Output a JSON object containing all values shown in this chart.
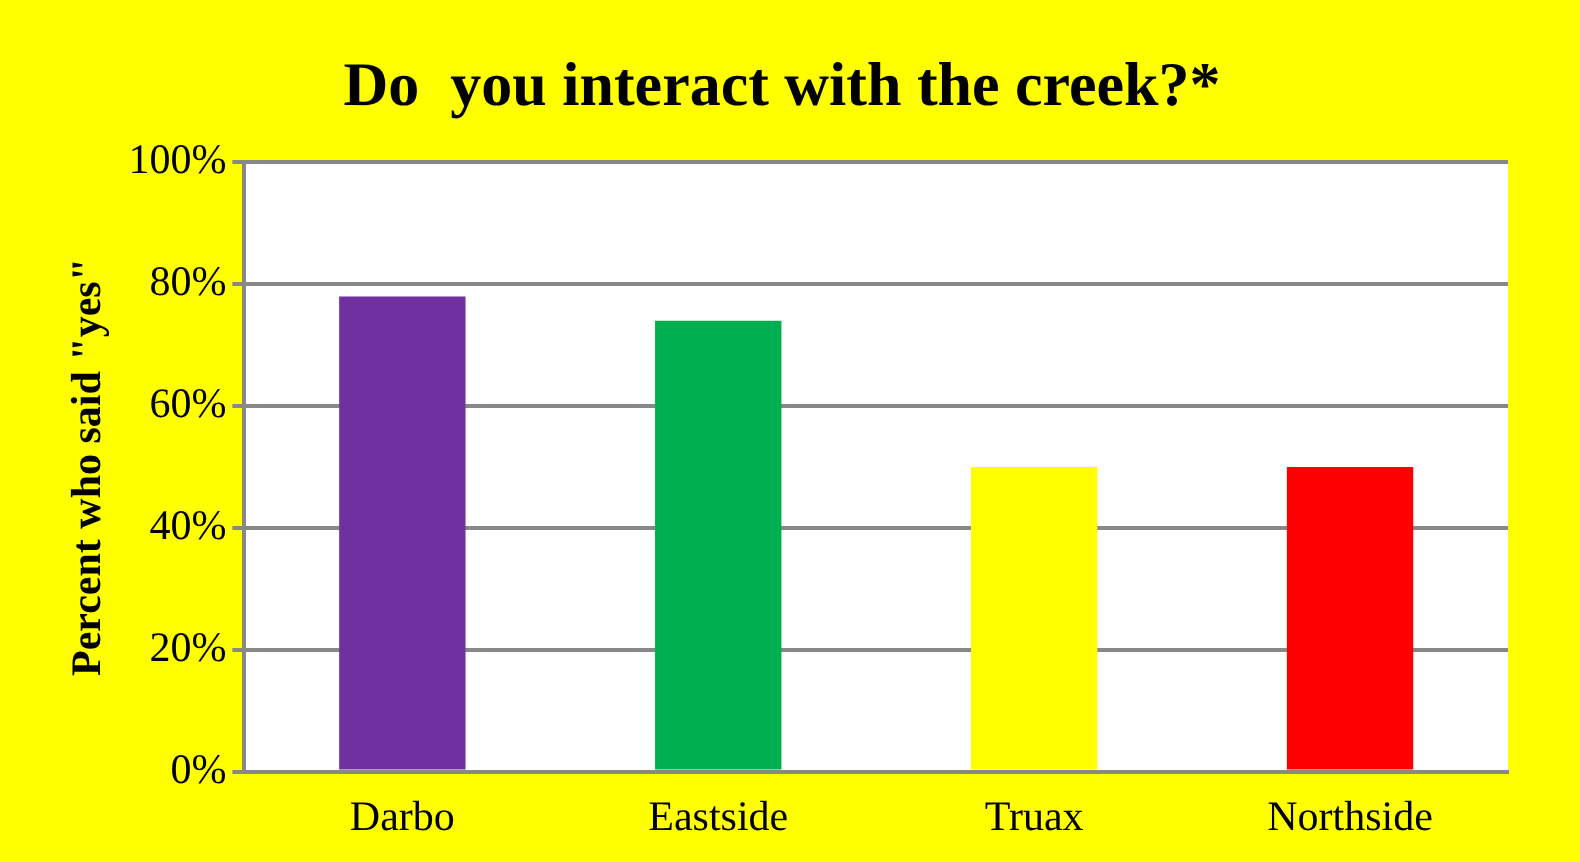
{
  "chart_data": {
    "type": "bar",
    "title": "Do  you interact with the creek?*",
    "ylabel": "Percent who said \"yes\"",
    "categories": [
      "Darbo",
      "Eastside",
      "Truax",
      "Northside"
    ],
    "values": [
      78,
      74,
      50,
      50
    ],
    "colors": [
      "#7030a0",
      "#00b050",
      "#ffff00",
      "#ff0000"
    ],
    "ylim": [
      0,
      100
    ],
    "yticks": [
      {
        "value": 0,
        "label": "0%"
      },
      {
        "value": 20,
        "label": "20%"
      },
      {
        "value": 40,
        "label": "40%"
      },
      {
        "value": 60,
        "label": "60%"
      },
      {
        "value": 80,
        "label": "80%"
      },
      {
        "value": 100,
        "label": "100%"
      }
    ],
    "grid": "y",
    "legend": false
  }
}
